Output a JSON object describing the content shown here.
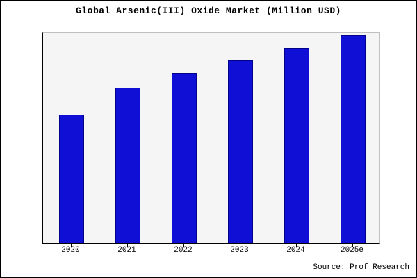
{
  "chart_data": {
    "type": "bar",
    "title": "Global Arsenic(III) Oxide Market (Million USD)",
    "categories": [
      "2020",
      "2021",
      "2022",
      "2023",
      "2024",
      "2025e"
    ],
    "values": [
      62,
      75,
      82,
      88,
      94,
      100
    ],
    "xlabel": "",
    "ylabel": "",
    "ylim": [
      0,
      102
    ],
    "grid": false,
    "legend": "none",
    "bar_fill_color": "#0f0fd6",
    "bar_border_color": "#00008b",
    "plot_background_color": "#f5f5f5"
  },
  "footer": {
    "source": "Source: Prof Research"
  }
}
